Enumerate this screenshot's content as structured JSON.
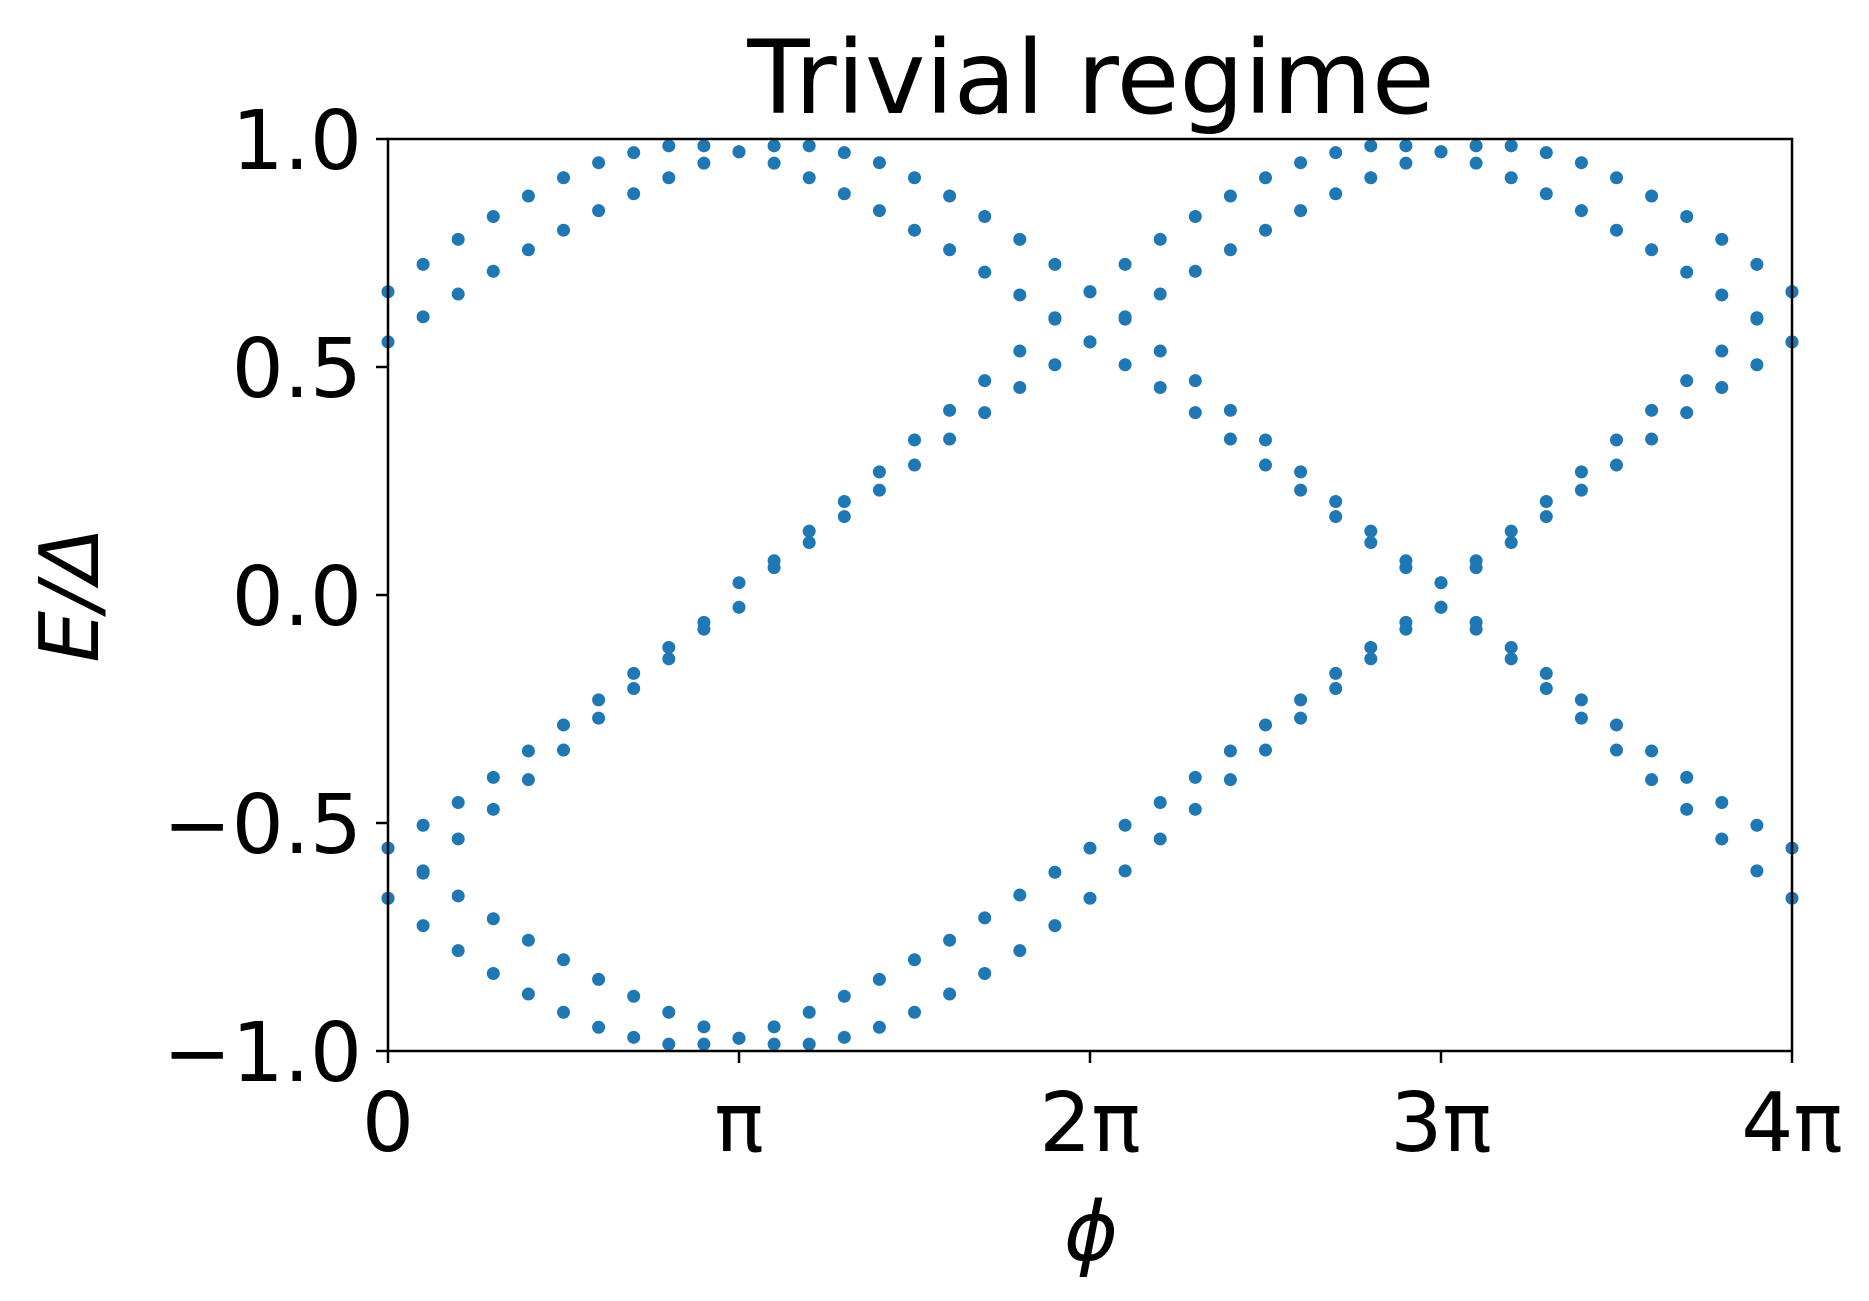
{
  "chart_data": {
    "type": "scatter",
    "title": "Trivial regime",
    "xlabel": "ϕ",
    "ylabel": "E/Δ",
    "xlim": [
      0,
      4
    ],
    "ylim": [
      -1.0,
      1.0
    ],
    "x_unit": "π",
    "grid": false,
    "legend": "none",
    "marker_color": "#1f77b4",
    "xticks": [
      0,
      1,
      2,
      3,
      4
    ],
    "xtick_labels": [
      "0",
      "π",
      "2π",
      "3π",
      "4π"
    ],
    "yticks": [
      1.0,
      0.5,
      0.0,
      -0.5,
      -1.0
    ],
    "ytick_labels": [
      "1.0",
      "0.5",
      "0.0",
      "−0.5",
      "−1.0"
    ],
    "series": [
      {
        "x": [
          0.0,
          0.1,
          0.2,
          0.3,
          0.4,
          0.5,
          0.6,
          0.7,
          0.8,
          0.9,
          1.0,
          1.1,
          1.2,
          1.3,
          1.4,
          1.5,
          1.6,
          1.7,
          1.8,
          1.9,
          2.0,
          2.1,
          2.2,
          2.3,
          2.4,
          2.5,
          2.6,
          2.7,
          2.8,
          2.9,
          3.0,
          3.1,
          3.2,
          3.3,
          3.4,
          3.5,
          3.6,
          3.7,
          3.8,
          3.9,
          4.0
        ],
        "y": [
          0.665,
          0.725,
          0.78,
          0.83,
          0.875,
          0.915,
          0.948,
          0.97,
          0.985,
          0.985,
          0.972,
          0.947,
          0.915,
          0.88,
          0.843,
          0.8,
          0.757,
          0.708,
          0.658,
          0.608,
          0.555,
          0.505,
          0.455,
          0.4,
          0.342,
          0.285,
          0.23,
          0.172,
          0.115,
          0.06,
          0.027,
          -0.075,
          -0.14,
          -0.205,
          -0.27,
          -0.34,
          -0.405,
          -0.47,
          -0.535,
          -0.605,
          -0.665
        ]
      },
      {
        "x": [
          0.0,
          0.1,
          0.2,
          0.3,
          0.4,
          0.5,
          0.6,
          0.7,
          0.8,
          0.9,
          1.0,
          1.1,
          1.2,
          1.3,
          1.4,
          1.5,
          1.6,
          1.7,
          1.8,
          1.9,
          2.0,
          2.1,
          2.2,
          2.3,
          2.4,
          2.5,
          2.6,
          2.7,
          2.8,
          2.9,
          3.0,
          3.1,
          3.2,
          3.3,
          3.4,
          3.5,
          3.6,
          3.7,
          3.8,
          3.9,
          4.0
        ],
        "y": [
          0.555,
          0.61,
          0.66,
          0.71,
          0.757,
          0.8,
          0.843,
          0.88,
          0.915,
          0.947,
          0.972,
          0.985,
          0.985,
          0.97,
          0.948,
          0.915,
          0.875,
          0.83,
          0.78,
          0.725,
          0.665,
          0.605,
          0.535,
          0.47,
          0.405,
          0.34,
          0.27,
          0.205,
          0.14,
          0.075,
          -0.027,
          -0.06,
          -0.115,
          -0.172,
          -0.23,
          -0.285,
          -0.342,
          -0.4,
          -0.455,
          -0.505,
          -0.555
        ]
      },
      {
        "x": [
          0.0,
          0.1,
          0.2,
          0.3,
          0.4,
          0.5,
          0.6,
          0.7,
          0.8,
          0.9,
          1.0,
          1.1,
          1.2,
          1.3,
          1.4,
          1.5,
          1.6,
          1.7,
          1.8,
          1.9,
          2.0,
          2.1,
          2.2,
          2.3,
          2.4,
          2.5,
          2.6,
          2.7,
          2.8,
          2.9,
          3.0,
          3.1,
          3.2,
          3.3,
          3.4,
          3.5,
          3.6,
          3.7,
          3.8,
          3.9,
          4.0
        ],
        "y": [
          -0.555,
          -0.505,
          -0.455,
          -0.4,
          -0.342,
          -0.285,
          -0.23,
          -0.172,
          -0.115,
          -0.06,
          -0.027,
          0.075,
          0.14,
          0.205,
          0.27,
          0.34,
          0.405,
          0.47,
          0.535,
          0.605,
          0.665,
          0.725,
          0.78,
          0.83,
          0.875,
          0.915,
          0.948,
          0.97,
          0.985,
          0.985,
          0.972,
          0.947,
          0.915,
          0.88,
          0.843,
          0.8,
          0.757,
          0.708,
          0.658,
          0.608,
          0.555
        ]
      },
      {
        "x": [
          0.0,
          0.1,
          0.2,
          0.3,
          0.4,
          0.5,
          0.6,
          0.7,
          0.8,
          0.9,
          1.0,
          1.1,
          1.2,
          1.3,
          1.4,
          1.5,
          1.6,
          1.7,
          1.8,
          1.9,
          2.0,
          2.1,
          2.2,
          2.3,
          2.4,
          2.5,
          2.6,
          2.7,
          2.8,
          2.9,
          3.0,
          3.1,
          3.2,
          3.3,
          3.4,
          3.5,
          3.6,
          3.7,
          3.8,
          3.9,
          4.0
        ],
        "y": [
          -0.665,
          -0.605,
          -0.535,
          -0.47,
          -0.405,
          -0.34,
          -0.27,
          -0.205,
          -0.14,
          -0.075,
          0.027,
          0.06,
          0.115,
          0.172,
          0.23,
          0.285,
          0.342,
          0.4,
          0.455,
          0.505,
          0.555,
          0.61,
          0.66,
          0.71,
          0.757,
          0.8,
          0.843,
          0.88,
          0.915,
          0.947,
          0.972,
          0.985,
          0.985,
          0.97,
          0.948,
          0.915,
          0.875,
          0.83,
          0.78,
          0.725,
          0.665
        ]
      },
      {
        "x": [
          0.0,
          0.1,
          0.2,
          0.3,
          0.4,
          0.5,
          0.6,
          0.7,
          0.8,
          0.9,
          1.0,
          1.1,
          1.2,
          1.3,
          1.4,
          1.5,
          1.6,
          1.7,
          1.8,
          1.9,
          2.0,
          2.1,
          2.2,
          2.3,
          2.4,
          2.5,
          2.6,
          2.7,
          2.8,
          2.9,
          3.0,
          3.1,
          3.2,
          3.3,
          3.4,
          3.5,
          3.6,
          3.7,
          3.8,
          3.9,
          4.0
        ],
        "y": [
          -0.665,
          -0.725,
          -0.78,
          -0.83,
          -0.875,
          -0.915,
          -0.948,
          -0.97,
          -0.985,
          -0.985,
          -0.972,
          -0.947,
          -0.915,
          -0.88,
          -0.843,
          -0.8,
          -0.757,
          -0.708,
          -0.658,
          -0.608,
          -0.555,
          -0.505,
          -0.455,
          -0.4,
          -0.342,
          -0.285,
          -0.23,
          -0.172,
          -0.115,
          -0.06,
          -0.027,
          0.075,
          0.14,
          0.205,
          0.27,
          0.34,
          0.405,
          0.47,
          0.535,
          0.605,
          0.665
        ]
      },
      {
        "x": [
          0.0,
          0.1,
          0.2,
          0.3,
          0.4,
          0.5,
          0.6,
          0.7,
          0.8,
          0.9,
          1.0,
          1.1,
          1.2,
          1.3,
          1.4,
          1.5,
          1.6,
          1.7,
          1.8,
          1.9,
          2.0,
          2.1,
          2.2,
          2.3,
          2.4,
          2.5,
          2.6,
          2.7,
          2.8,
          2.9,
          3.0,
          3.1,
          3.2,
          3.3,
          3.4,
          3.5,
          3.6,
          3.7,
          3.8,
          3.9,
          4.0
        ],
        "y": [
          -0.555,
          -0.61,
          -0.66,
          -0.71,
          -0.757,
          -0.8,
          -0.843,
          -0.88,
          -0.915,
          -0.947,
          -0.972,
          -0.985,
          -0.985,
          -0.97,
          -0.948,
          -0.915,
          -0.875,
          -0.83,
          -0.78,
          -0.725,
          -0.665,
          -0.605,
          -0.535,
          -0.47,
          -0.405,
          -0.34,
          -0.27,
          -0.205,
          -0.14,
          -0.075,
          0.027,
          0.06,
          0.115,
          0.172,
          0.23,
          0.285,
          0.342,
          0.4,
          0.455,
          0.505,
          0.555
        ]
      }
    ]
  }
}
